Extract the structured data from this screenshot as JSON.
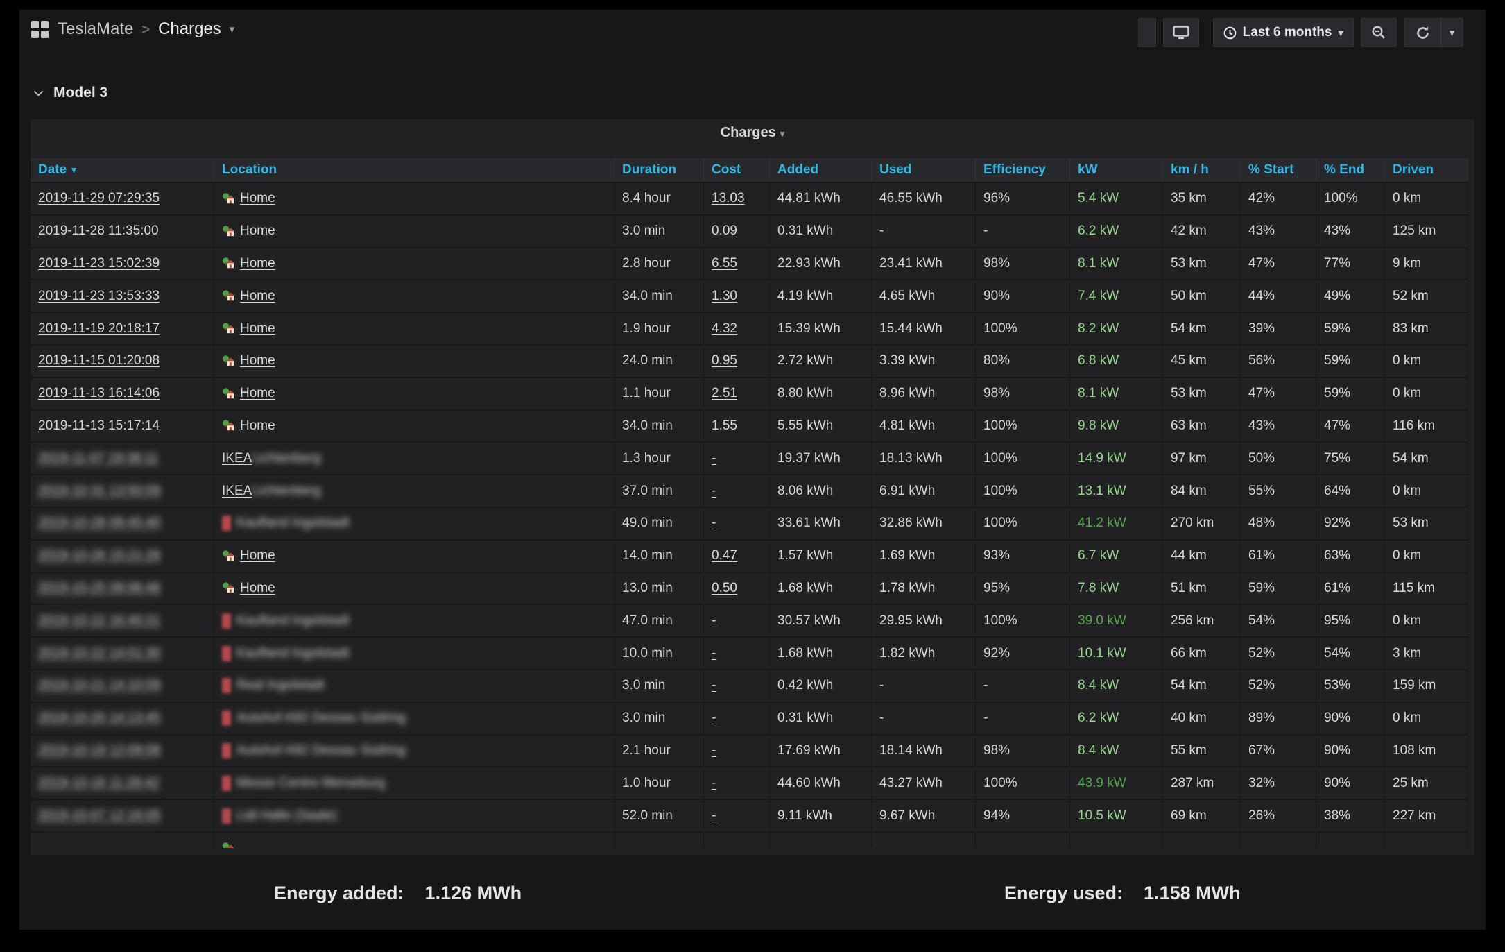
{
  "nav": {
    "app": "TeslaMate",
    "separator": ">",
    "page": "Charges",
    "time_range": "Last 6 months"
  },
  "row_group": {
    "title": "Model 3"
  },
  "panel": {
    "title": "Charges",
    "columns": [
      "Date",
      "Location",
      "Duration",
      "Cost",
      "Added",
      "Used",
      "Efficiency",
      "kW",
      "km / h",
      "% Start",
      "% End",
      "Driven"
    ],
    "rows": [
      {
        "date": "2019-11-29 07:29:35",
        "date_redacted": false,
        "loc_type": "home",
        "loc_text": "Home",
        "loc_redacted": false,
        "duration": "8.4 hour",
        "cost": "13.03",
        "added": "44.81 kWh",
        "used": "46.55 kWh",
        "efficiency": "96%",
        "kw": "5.4 kW",
        "kw_level": "low",
        "kmh": "35 km",
        "start": "42%",
        "end": "100%",
        "driven": "0 km"
      },
      {
        "date": "2019-11-28 11:35:00",
        "date_redacted": false,
        "loc_type": "home",
        "loc_text": "Home",
        "loc_redacted": false,
        "duration": "3.0 min",
        "cost": "0.09",
        "added": "0.31 kWh",
        "used": "-",
        "efficiency": "-",
        "kw": "6.2 kW",
        "kw_level": "low",
        "kmh": "42 km",
        "start": "43%",
        "end": "43%",
        "driven": "125 km"
      },
      {
        "date": "2019-11-23 15:02:39",
        "date_redacted": false,
        "loc_type": "home",
        "loc_text": "Home",
        "loc_redacted": false,
        "duration": "2.8 hour",
        "cost": "6.55",
        "added": "22.93 kWh",
        "used": "23.41 kWh",
        "efficiency": "98%",
        "kw": "8.1 kW",
        "kw_level": "low",
        "kmh": "53 km",
        "start": "47%",
        "end": "77%",
        "driven": "9 km"
      },
      {
        "date": "2019-11-23 13:53:33",
        "date_redacted": false,
        "loc_type": "home",
        "loc_text": "Home",
        "loc_redacted": false,
        "duration": "34.0 min",
        "cost": "1.30",
        "added": "4.19 kWh",
        "used": "4.65 kWh",
        "efficiency": "90%",
        "kw": "7.4 kW",
        "kw_level": "low",
        "kmh": "50 km",
        "start": "44%",
        "end": "49%",
        "driven": "52 km"
      },
      {
        "date": "2019-11-19 20:18:17",
        "date_redacted": false,
        "loc_type": "home",
        "loc_text": "Home",
        "loc_redacted": false,
        "duration": "1.9 hour",
        "cost": "4.32",
        "added": "15.39 kWh",
        "used": "15.44 kWh",
        "efficiency": "100%",
        "kw": "8.2 kW",
        "kw_level": "low",
        "kmh": "54 km",
        "start": "39%",
        "end": "59%",
        "driven": "83 km"
      },
      {
        "date": "2019-11-15 01:20:08",
        "date_redacted": false,
        "loc_type": "home",
        "loc_text": "Home",
        "loc_redacted": false,
        "duration": "24.0 min",
        "cost": "0.95",
        "added": "2.72 kWh",
        "used": "3.39 kWh",
        "efficiency": "80%",
        "kw": "6.8 kW",
        "kw_level": "low",
        "kmh": "45 km",
        "start": "56%",
        "end": "59%",
        "driven": "0 km"
      },
      {
        "date": "2019-11-13 16:14:06",
        "date_redacted": false,
        "loc_type": "home",
        "loc_text": "Home",
        "loc_redacted": false,
        "duration": "1.1 hour",
        "cost": "2.51",
        "added": "8.80 kWh",
        "used": "8.96 kWh",
        "efficiency": "98%",
        "kw": "8.1 kW",
        "kw_level": "low",
        "kmh": "53 km",
        "start": "47%",
        "end": "59%",
        "driven": "0 km"
      },
      {
        "date": "2019-11-13 15:17:14",
        "date_redacted": false,
        "loc_type": "home",
        "loc_text": "Home",
        "loc_redacted": false,
        "duration": "34.0 min",
        "cost": "1.55",
        "added": "5.55 kWh",
        "used": "4.81 kWh",
        "efficiency": "100%",
        "kw": "9.8 kW",
        "kw_level": "low",
        "kmh": "63 km",
        "start": "43%",
        "end": "47%",
        "driven": "116 km"
      },
      {
        "date": "2019-11-07 19:38:11",
        "date_redacted": true,
        "loc_type": "ikea",
        "loc_prefix": "IKEA",
        "loc_text": " Lichtenberg",
        "loc_redacted": true,
        "duration": "1.3 hour",
        "cost": "-",
        "added": "19.37 kWh",
        "used": "18.13 kWh",
        "efficiency": "100%",
        "kw": "14.9 kW",
        "kw_level": "low",
        "kmh": "97 km",
        "start": "50%",
        "end": "75%",
        "driven": "54 km"
      },
      {
        "date": "2019-10-31 13:50:09",
        "date_redacted": true,
        "loc_type": "ikea",
        "loc_prefix": "IKEA",
        "loc_text": " Lichtenberg",
        "loc_redacted": true,
        "duration": "37.0 min",
        "cost": "-",
        "added": "8.06 kWh",
        "used": "6.91 kWh",
        "efficiency": "100%",
        "kw": "13.1 kW",
        "kw_level": "low",
        "kmh": "84 km",
        "start": "55%",
        "end": "64%",
        "driven": "0 km"
      },
      {
        "date": "2019-10-28 09:45:40",
        "date_redacted": true,
        "loc_type": "red",
        "loc_text": "Kaufland Ingolstadt",
        "loc_redacted": true,
        "duration": "49.0 min",
        "cost": "-",
        "added": "33.61 kWh",
        "used": "32.86 kWh",
        "efficiency": "100%",
        "kw": "41.2 kW",
        "kw_level": "high",
        "kmh": "270 km",
        "start": "48%",
        "end": "92%",
        "driven": "53 km"
      },
      {
        "date": "2019-10-26 15:21:26",
        "date_redacted": true,
        "loc_type": "home",
        "loc_text": "Home",
        "loc_redacted": false,
        "duration": "14.0 min",
        "cost": "0.47",
        "added": "1.57 kWh",
        "used": "1.69 kWh",
        "efficiency": "93%",
        "kw": "6.7 kW",
        "kw_level": "low",
        "kmh": "44 km",
        "start": "61%",
        "end": "63%",
        "driven": "0 km"
      },
      {
        "date": "2019-10-25 09:06:46",
        "date_redacted": true,
        "loc_type": "home",
        "loc_text": "Home",
        "loc_redacted": false,
        "duration": "13.0 min",
        "cost": "0.50",
        "added": "1.68 kWh",
        "used": "1.78 kWh",
        "efficiency": "95%",
        "kw": "7.8 kW",
        "kw_level": "low",
        "kmh": "51 km",
        "start": "59%",
        "end": "61%",
        "driven": "115 km"
      },
      {
        "date": "2019-10-22 16:40:31",
        "date_redacted": true,
        "loc_type": "red",
        "loc_text": "Kaufland Ingolstadt",
        "loc_redacted": true,
        "duration": "47.0 min",
        "cost": "-",
        "added": "30.57 kWh",
        "used": "29.95 kWh",
        "efficiency": "100%",
        "kw": "39.0 kW",
        "kw_level": "high",
        "kmh": "256 km",
        "start": "54%",
        "end": "95%",
        "driven": "0 km"
      },
      {
        "date": "2019-10-22 14:01:30",
        "date_redacted": true,
        "loc_type": "red",
        "loc_text": "Kaufland Ingolstadt",
        "loc_redacted": true,
        "duration": "10.0 min",
        "cost": "-",
        "added": "1.68 kWh",
        "used": "1.82 kWh",
        "efficiency": "92%",
        "kw": "10.1 kW",
        "kw_level": "low",
        "kmh": "66 km",
        "start": "52%",
        "end": "54%",
        "driven": "3 km"
      },
      {
        "date": "2019-10-21 14:10:09",
        "date_redacted": true,
        "loc_type": "red",
        "loc_text": "Real Ingolstadt",
        "loc_redacted": true,
        "duration": "3.0 min",
        "cost": "-",
        "added": "0.42 kWh",
        "used": "-",
        "efficiency": "-",
        "kw": "8.4 kW",
        "kw_level": "low",
        "kmh": "54 km",
        "start": "52%",
        "end": "53%",
        "driven": "159 km"
      },
      {
        "date": "2019-10-20 14:13:45",
        "date_redacted": true,
        "loc_type": "red",
        "loc_text": "Autohof A92 Dessau Südring",
        "loc_redacted": true,
        "duration": "3.0 min",
        "cost": "-",
        "added": "0.31 kWh",
        "used": "-",
        "efficiency": "-",
        "kw": "6.2 kW",
        "kw_level": "low",
        "kmh": "40 km",
        "start": "89%",
        "end": "90%",
        "driven": "0 km"
      },
      {
        "date": "2019-10-19 12:09:08",
        "date_redacted": true,
        "loc_type": "red",
        "loc_text": "Autohof A92 Dessau Südring",
        "loc_redacted": true,
        "duration": "2.1 hour",
        "cost": "-",
        "added": "17.69 kWh",
        "used": "18.14 kWh",
        "efficiency": "98%",
        "kw": "8.4 kW",
        "kw_level": "low",
        "kmh": "55 km",
        "start": "67%",
        "end": "90%",
        "driven": "108 km"
      },
      {
        "date": "2019-10-16 11:28:42",
        "date_redacted": true,
        "loc_type": "red",
        "loc_text": "Messe Centre Merseburg",
        "loc_redacted": true,
        "duration": "1.0 hour",
        "cost": "-",
        "added": "44.60 kWh",
        "used": "43.27 kWh",
        "efficiency": "100%",
        "kw": "43.9 kW",
        "kw_level": "high",
        "kmh": "287 km",
        "start": "32%",
        "end": "90%",
        "driven": "25 km"
      },
      {
        "date": "2019-10-07 12:16:05",
        "date_redacted": true,
        "loc_type": "red",
        "loc_text": "Lidl Halle (Saale)",
        "loc_redacted": true,
        "duration": "52.0 min",
        "cost": "-",
        "added": "9.11 kWh",
        "used": "9.67 kWh",
        "efficiency": "94%",
        "kw": "10.5 kW",
        "kw_level": "low",
        "kmh": "69 km",
        "start": "26%",
        "end": "38%",
        "driven": "227 km"
      },
      {
        "partial": true,
        "loc_type": "home"
      }
    ]
  },
  "footer": {
    "added_label": "Energy added:",
    "added_value": "1.126 MWh",
    "used_label": "Energy used:",
    "used_value": "1.158 MWh"
  },
  "colors": {
    "header_accent": "#33b5e5",
    "kw_low_green": "#96d98d",
    "kw_high_green": "#56a64b",
    "panel_bg": "#212124",
    "dashboard_bg": "#161719"
  }
}
